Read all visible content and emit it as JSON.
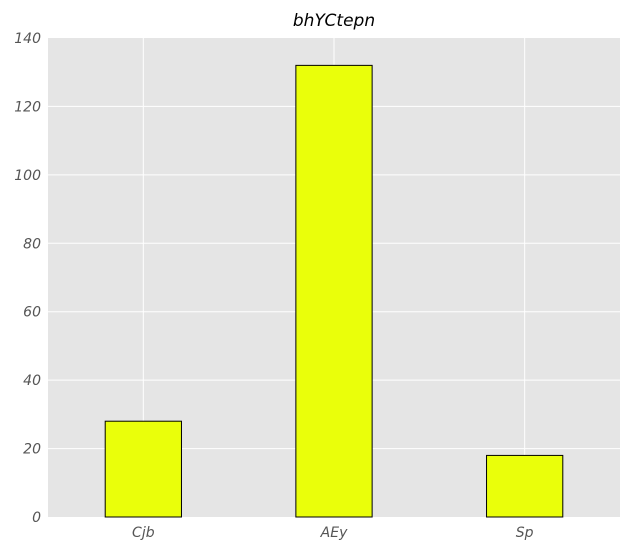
{
  "chart_data": {
    "type": "bar",
    "title": "bhYCtepn",
    "xlabel": "",
    "ylabel": "",
    "categories": [
      "Cjb",
      "AEy",
      "Sp"
    ],
    "values": [
      28,
      132,
      18
    ],
    "ylim": [
      0,
      140
    ],
    "yticks": [
      0,
      20,
      40,
      60,
      80,
      100,
      120,
      140
    ],
    "grid": true,
    "colors": {
      "bar_fill": "#eaff0a",
      "bar_edge": "#000000",
      "plot_background": "#e5e5e5",
      "grid": "#ffffff"
    }
  }
}
